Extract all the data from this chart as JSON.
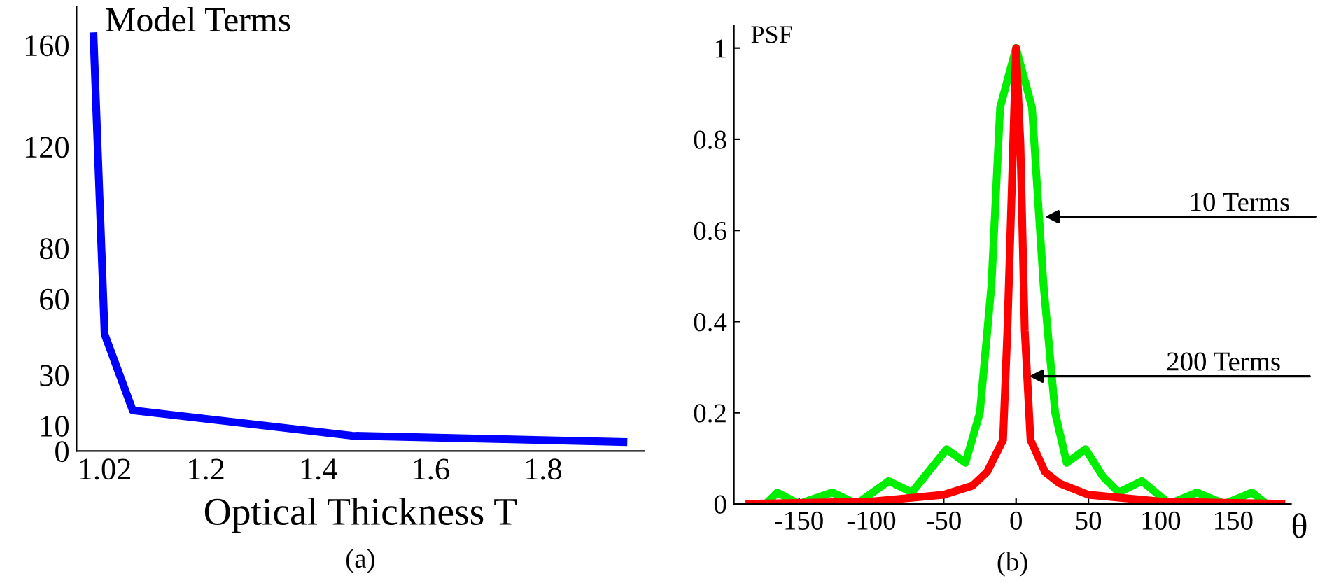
{
  "chart_data": [
    {
      "type": "line",
      "ylabel": "Model Terms",
      "xlabel": "Optical Thickness T",
      "annotations": [
        "(a)"
      ],
      "x": [
        1.0,
        1.02,
        1.07,
        1.46,
        1.95
      ],
      "series": [
        {
          "color": "#0000ff",
          "values": [
            165,
            46,
            16,
            6,
            3.5
          ]
        }
      ],
      "xlim": [
        0.97,
        1.98
      ],
      "ylim": [
        0,
        175
      ],
      "xticks": [
        1.02,
        1.2,
        1.4,
        1.6,
        1.8
      ],
      "yticks": [
        0,
        10,
        30,
        60,
        80,
        120,
        160
      ],
      "grid": false
    },
    {
      "type": "line",
      "ylabel": "PSF",
      "xlabel": "θ",
      "annotations": [
        {
          "text": "10 Terms",
          "x": 20,
          "y": 0.63
        },
        {
          "text": "200 Terms",
          "x": 9,
          "y": 0.28
        },
        "(b)"
      ],
      "series": [
        {
          "color": "#00ee00",
          "x": [
            -173,
            -165,
            -150,
            -127,
            -110,
            -88,
            -72,
            -48,
            -35,
            -25,
            -17,
            -11,
            0,
            11,
            19,
            27,
            35,
            48,
            60,
            71,
            87,
            106,
            125,
            144,
            163,
            173
          ],
          "values": [
            0,
            0.025,
            0,
            0.025,
            0,
            0.05,
            0.025,
            0.12,
            0.09,
            0.2,
            0.48,
            0.87,
            1.0,
            0.87,
            0.48,
            0.2,
            0.09,
            0.12,
            0.06,
            0.025,
            0.05,
            0,
            0.025,
            0,
            0.025,
            0
          ]
        },
        {
          "color": "#ff0000",
          "x": [
            -187,
            -150,
            -100,
            -50,
            -30,
            -20,
            -9,
            -6,
            -2,
            0,
            3,
            6,
            10,
            20,
            30,
            50,
            100,
            150,
            186
          ],
          "values": [
            0,
            0.002,
            0.005,
            0.02,
            0.04,
            0.07,
            0.14,
            0.38,
            0.79,
            1.0,
            0.79,
            0.38,
            0.14,
            0.07,
            0.045,
            0.02,
            0.005,
            0.002,
            0
          ]
        }
      ],
      "xlim": [
        -195,
        190
      ],
      "ylim": [
        0,
        1.05
      ],
      "xticks": [
        -150,
        -100,
        -50,
        0,
        50,
        100,
        150
      ],
      "yticks": [
        0,
        0.2,
        0.4,
        0.6,
        0.8,
        1
      ],
      "grid": false
    }
  ]
}
